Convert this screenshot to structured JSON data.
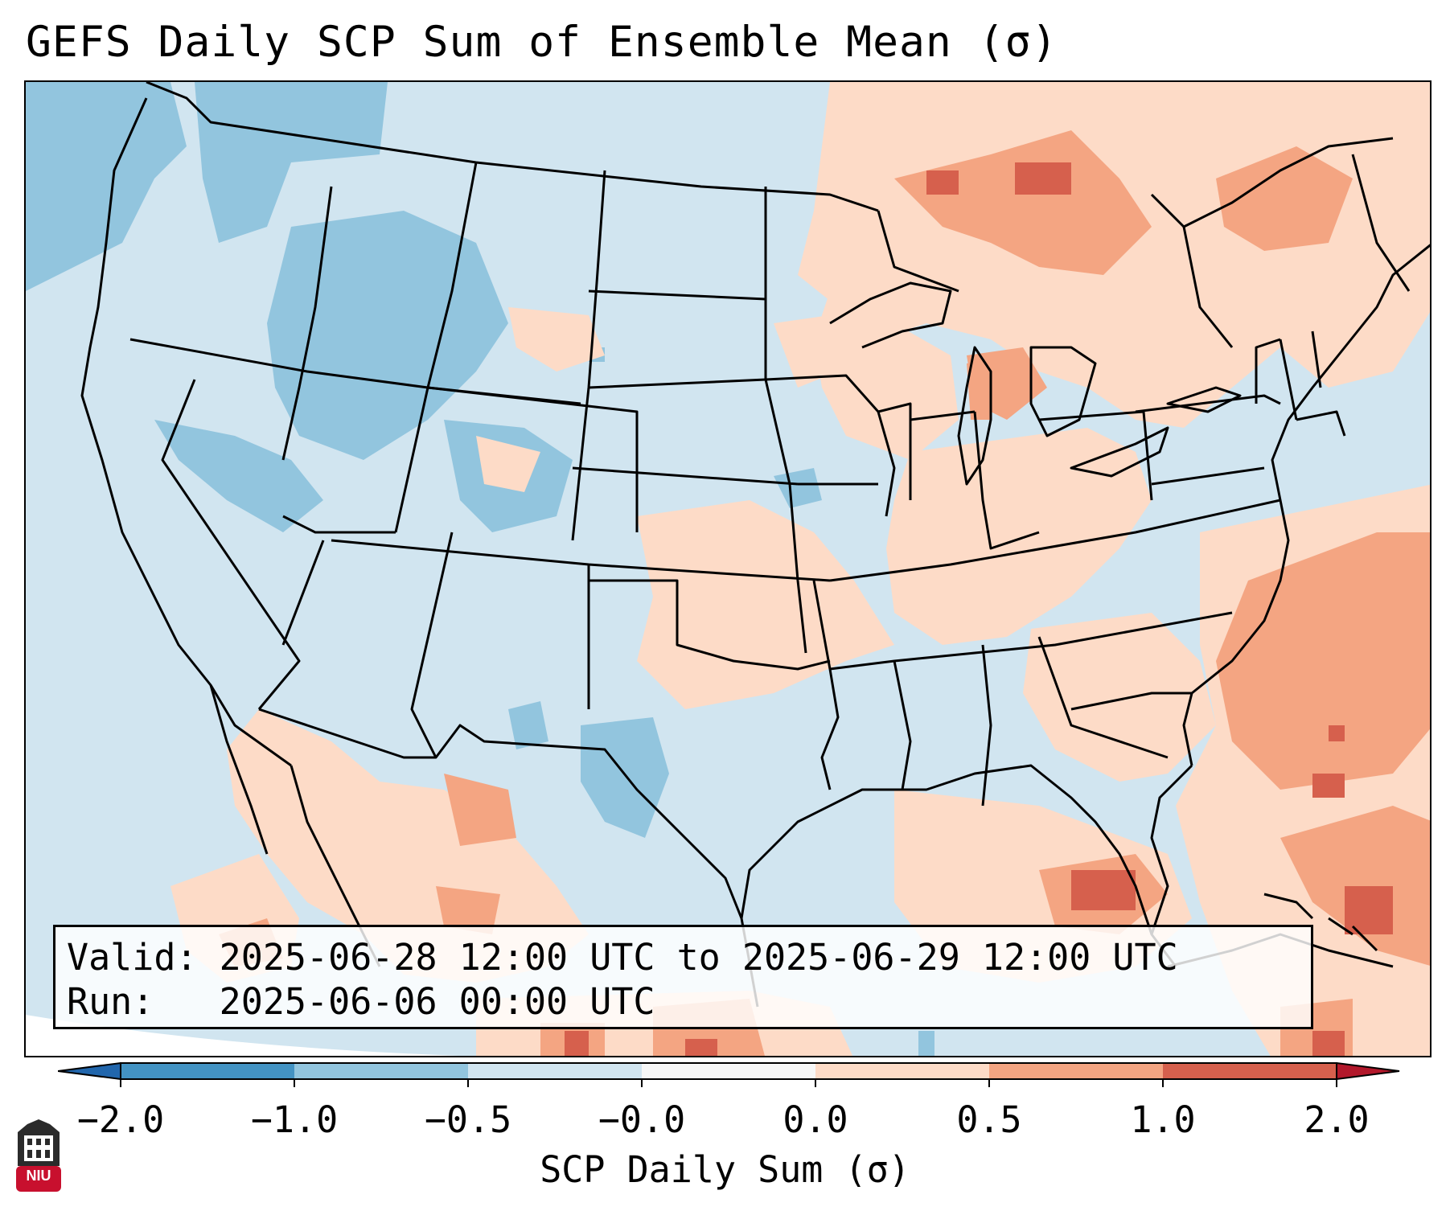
{
  "title": "GEFS Daily SCP Sum of Ensemble Mean (σ)",
  "info": {
    "valid_line": "Valid: 2025-06-28 12:00 UTC to 2025-06-29 12:00 UTC",
    "run_line": "Run:   2025-06-06 00:00 UTC"
  },
  "colorbar": {
    "label": "SCP Daily Sum (σ)",
    "ticks": [
      "−2.0",
      "−1.0",
      "−0.5",
      "−0.0",
      "0.0",
      "0.5",
      "1.0",
      "2.0"
    ],
    "colors": [
      "#4393c3",
      "#92c5de",
      "#d1e5f0",
      "#f7f7f7",
      "#fddbc7",
      "#f4a582",
      "#d6604d"
    ],
    "under_color": "#2166ac",
    "over_color": "#b2182b"
  },
  "logo": {
    "text": "NIU"
  },
  "palette": {
    "ocean": "#d1e5f0",
    "land_neutral": "#d1e5f0",
    "blue_light": "#92c5de",
    "blue_med": "#4393c3",
    "red_light": "#fddbc7",
    "red_med": "#f4a582",
    "red_dark": "#d6604d"
  }
}
